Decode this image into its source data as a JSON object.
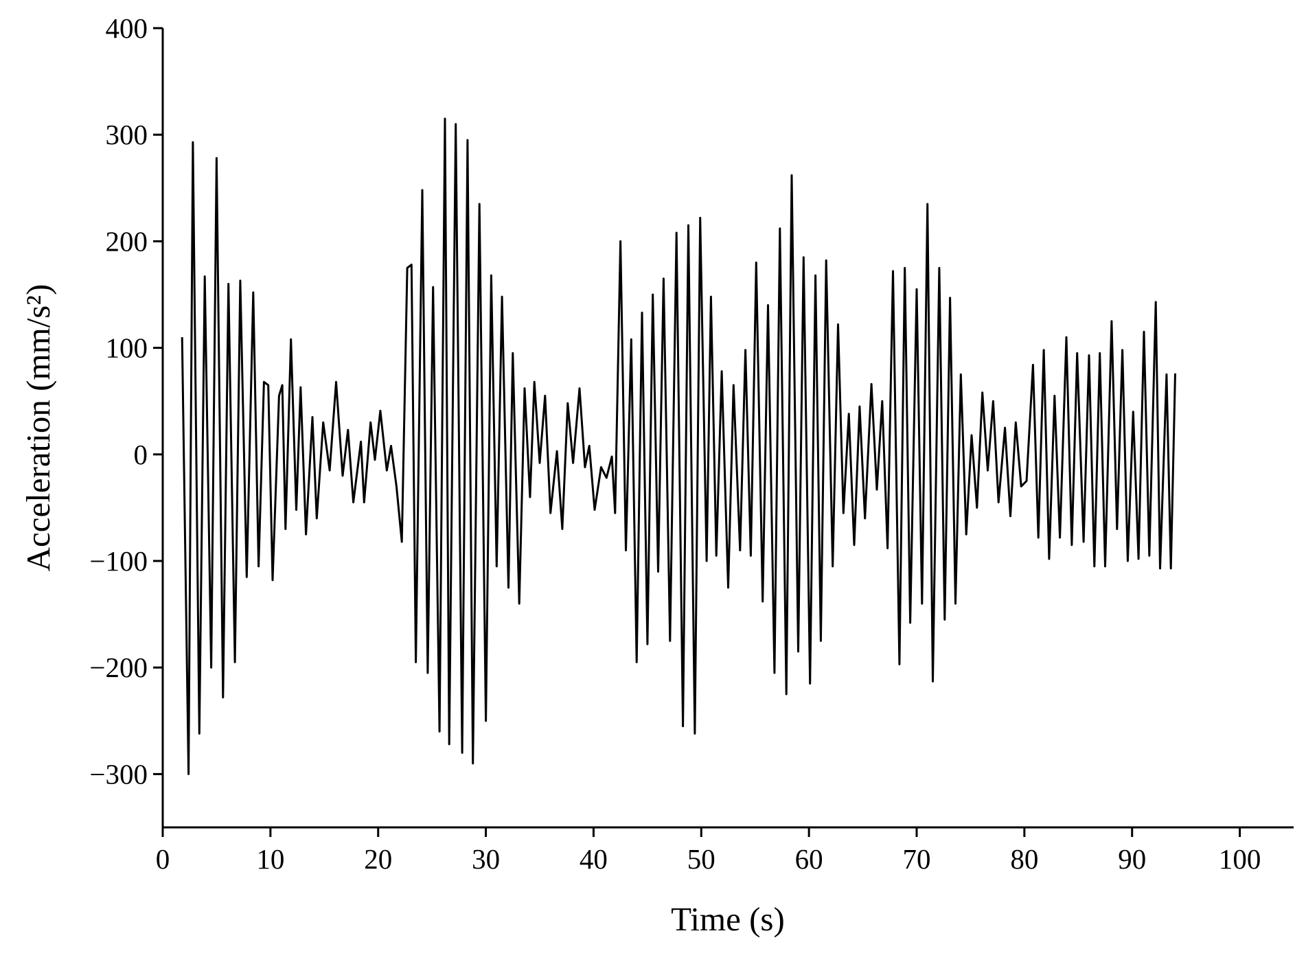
{
  "chart_data": {
    "type": "line",
    "xlabel": "Time (s)",
    "ylabel": "Acceleration (mm/s²)",
    "color": "#000000",
    "xlim": [
      0,
      105
    ],
    "ylim": [
      -350,
      400
    ],
    "xticks": [
      0,
      10,
      20,
      30,
      40,
      50,
      60,
      70,
      80,
      90,
      100
    ],
    "yticks": [
      {
        "value": -300,
        "label": "−300"
      },
      {
        "value": -200,
        "label": "−200"
      },
      {
        "value": -100,
        "label": "−100"
      },
      0,
      100,
      200,
      300,
      400
    ],
    "x": [
      1.8,
      2.4,
      2.8,
      3.4,
      3.9,
      4.5,
      5.0,
      5.6,
      6.1,
      6.7,
      7.2,
      7.8,
      8.4,
      8.9,
      9.4,
      9.8,
      10.2,
      10.8,
      11.1,
      11.4,
      11.9,
      12.4,
      12.8,
      13.3,
      13.9,
      14.3,
      14.9,
      15.5,
      16.1,
      16.7,
      17.2,
      17.7,
      18.4,
      18.7,
      19.3,
      19.7,
      20.2,
      20.8,
      21.2,
      21.7,
      22.2,
      22.7,
      23.1,
      23.5,
      24.1,
      24.6,
      25.1,
      25.7,
      26.2,
      26.6,
      27.2,
      27.8,
      28.3,
      28.8,
      29.4,
      30.0,
      30.5,
      31.0,
      31.5,
      32.1,
      32.5,
      33.1,
      33.6,
      34.1,
      34.5,
      35.0,
      35.5,
      36.0,
      36.6,
      37.1,
      37.6,
      38.1,
      38.7,
      39.2,
      39.6,
      40.1,
      40.7,
      41.2,
      41.7,
      42.0,
      42.5,
      43.0,
      43.5,
      44.0,
      44.5,
      45.0,
      45.5,
      46.0,
      46.5,
      47.1,
      47.7,
      48.3,
      48.8,
      49.4,
      49.9,
      50.5,
      50.9,
      51.4,
      51.9,
      52.5,
      53.0,
      53.6,
      54.1,
      54.6,
      55.1,
      55.7,
      56.2,
      56.8,
      57.3,
      57.9,
      58.4,
      59.0,
      59.5,
      60.1,
      60.6,
      61.1,
      61.6,
      62.2,
      62.7,
      63.2,
      63.7,
      64.2,
      64.7,
      65.2,
      65.8,
      66.3,
      66.8,
      67.3,
      67.8,
      68.4,
      68.9,
      69.4,
      70.0,
      70.5,
      71.0,
      71.5,
      72.1,
      72.6,
      73.1,
      73.6,
      74.1,
      74.6,
      75.1,
      75.6,
      76.1,
      76.6,
      77.1,
      77.6,
      78.2,
      78.7,
      79.2,
      79.7,
      80.2,
      80.8,
      81.3,
      81.8,
      82.3,
      82.8,
      83.3,
      83.9,
      84.4,
      84.9,
      85.5,
      86.0,
      86.5,
      87.0,
      87.5,
      88.1,
      88.6,
      89.1,
      89.6,
      90.1,
      90.6,
      91.1,
      91.6,
      92.2,
      92.6,
      93.2,
      93.6,
      94.0
    ],
    "values": [
      110,
      -300,
      293,
      -262,
      167,
      -200,
      278,
      -228,
      160,
      -195,
      163,
      -115,
      152,
      -105,
      68,
      65,
      -118,
      55,
      65,
      -70,
      108,
      -52,
      63,
      -75,
      35,
      -60,
      30,
      -15,
      68,
      -20,
      23,
      -45,
      12,
      -45,
      30,
      -5,
      41,
      -15,
      8,
      -30,
      -82,
      175,
      178,
      -195,
      248,
      -205,
      157,
      -260,
      315,
      -272,
      310,
      -280,
      295,
      -290,
      235,
      -250,
      168,
      -105,
      148,
      -125,
      95,
      -140,
      62,
      -40,
      68,
      -8,
      55,
      -55,
      3,
      -70,
      48,
      -8,
      62,
      -12,
      8,
      -52,
      -12,
      -22,
      -2,
      -55,
      200,
      -90,
      108,
      -195,
      133,
      -178,
      150,
      -110,
      165,
      -175,
      208,
      -255,
      215,
      -262,
      222,
      -100,
      148,
      -95,
      78,
      -125,
      65,
      -90,
      98,
      -95,
      180,
      -138,
      140,
      -205,
      212,
      -225,
      262,
      -185,
      185,
      -215,
      168,
      -175,
      182,
      -105,
      122,
      -55,
      38,
      -85,
      45,
      -60,
      66,
      -33,
      50,
      -88,
      172,
      -197,
      175,
      -158,
      155,
      -140,
      235,
      -213,
      175,
      -155,
      147,
      -140,
      75,
      -75,
      18,
      -50,
      58,
      -15,
      50,
      -45,
      25,
      -58,
      30,
      -30,
      -25,
      84,
      -78,
      98,
      -98,
      55,
      -78,
      110,
      -85,
      95,
      -82,
      93,
      -105,
      95,
      -105,
      125,
      -70,
      98,
      -100,
      40,
      -98,
      115,
      -95,
      143,
      -107,
      75,
      -107,
      76
    ]
  }
}
